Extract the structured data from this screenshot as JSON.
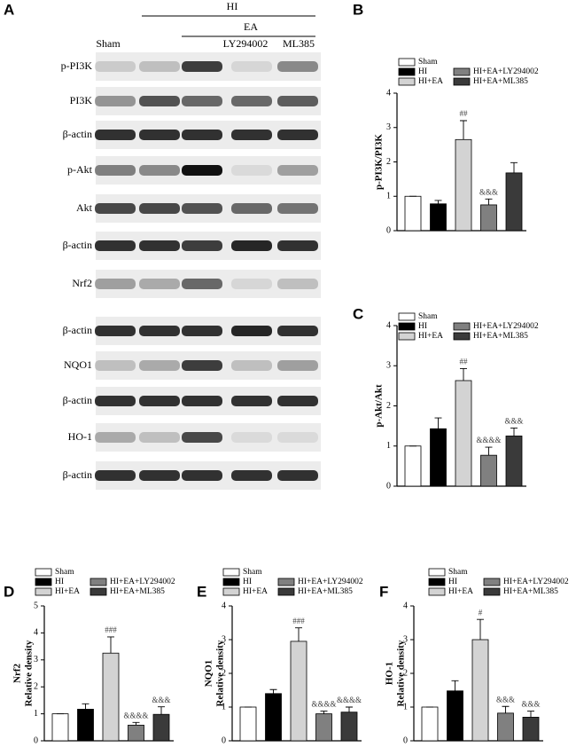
{
  "blot": {
    "panel": "A",
    "group_outer": "HI",
    "group_inner": "EA",
    "lanes": [
      "Sham",
      "LY294002",
      "ML385"
    ],
    "rows": [
      "p-PI3K",
      "PI3K",
      "β-actin",
      "p-Akt",
      "Akt",
      "β-actin",
      "Nrf2",
      "β-actin",
      "NQO1",
      "β-actin",
      "HO-1",
      "β-actin"
    ]
  },
  "chart_data": [
    {
      "type": "bar",
      "panel": "B",
      "ylabel": "p-PI3K/PI3K",
      "categories": [
        "Sham",
        "HI",
        "HI+EA",
        "HI+EA+LY294002",
        "HI+EA+ML385"
      ],
      "colors": [
        "#ffffff",
        "#000000",
        "#d3d3d3",
        "#808080",
        "#3a3a3a"
      ],
      "values": [
        1,
        0.78,
        2.65,
        0.75,
        1.68
      ],
      "errors": [
        0,
        0.1,
        0.55,
        0.17,
        0.3
      ],
      "annotations": [
        null,
        null,
        "##",
        "&&&",
        null
      ],
      "ylim": [
        0,
        4
      ],
      "yticks": [
        0,
        1,
        2,
        3,
        4
      ]
    },
    {
      "type": "bar",
      "panel": "C",
      "ylabel": "p-Akt/Akt",
      "categories": [
        "Sham",
        "HI",
        "HI+EA",
        "HI+EA+LY294002",
        "HI+EA+ML385"
      ],
      "colors": [
        "#ffffff",
        "#000000",
        "#d3d3d3",
        "#808080",
        "#3a3a3a"
      ],
      "values": [
        1,
        1.43,
        2.63,
        0.77,
        1.25
      ],
      "errors": [
        0,
        0.27,
        0.3,
        0.2,
        0.2
      ],
      "annotations": [
        null,
        null,
        "##",
        "&&&&",
        "&&&"
      ],
      "ylim": [
        0,
        4
      ],
      "yticks": [
        0,
        1,
        2,
        3,
        4
      ]
    },
    {
      "type": "bar",
      "panel": "D",
      "ylabel": "Nrf2",
      "ylabel_sub": "Relative density",
      "categories": [
        "Sham",
        "HI",
        "HI+EA",
        "HI+EA+LY294002",
        "HI+EA+ML385"
      ],
      "colors": [
        "#ffffff",
        "#000000",
        "#d3d3d3",
        "#808080",
        "#3a3a3a"
      ],
      "values": [
        1,
        1.17,
        3.25,
        0.58,
        0.98
      ],
      "errors": [
        0,
        0.2,
        0.6,
        0.1,
        0.28
      ],
      "annotations": [
        null,
        null,
        "###",
        "&&&&",
        "&&&"
      ],
      "ylim": [
        0,
        5
      ],
      "yticks": [
        0,
        1,
        2,
        3,
        4,
        5
      ]
    },
    {
      "type": "bar",
      "panel": "E",
      "ylabel": "NQO1",
      "ylabel_sub": "Relative density",
      "categories": [
        "Sham",
        "HI",
        "HI+EA",
        "HI+EA+LY294002",
        "HI+EA+ML385"
      ],
      "colors": [
        "#ffffff",
        "#000000",
        "#d3d3d3",
        "#808080",
        "#3a3a3a"
      ],
      "values": [
        1,
        1.4,
        2.95,
        0.8,
        0.85
      ],
      "errors": [
        0,
        0.12,
        0.4,
        0.08,
        0.15
      ],
      "annotations": [
        null,
        null,
        "###",
        "&&&&",
        "&&&&"
      ],
      "ylim": [
        0,
        4
      ],
      "yticks": [
        0,
        1,
        2,
        3,
        4
      ]
    },
    {
      "type": "bar",
      "panel": "F",
      "ylabel": "HO-1",
      "ylabel_sub": "Relative density",
      "categories": [
        "Sham",
        "HI",
        "HI+EA",
        "HI+EA+LY294002",
        "HI+EA+ML385"
      ],
      "colors": [
        "#ffffff",
        "#000000",
        "#d3d3d3",
        "#808080",
        "#3a3a3a"
      ],
      "values": [
        1,
        1.48,
        3.0,
        0.82,
        0.7
      ],
      "errors": [
        0,
        0.3,
        0.6,
        0.2,
        0.18
      ],
      "annotations": [
        null,
        null,
        "#",
        "&&&",
        "&&&"
      ],
      "ylim": [
        0,
        4
      ],
      "yticks": [
        0,
        1,
        2,
        3,
        4
      ]
    }
  ]
}
